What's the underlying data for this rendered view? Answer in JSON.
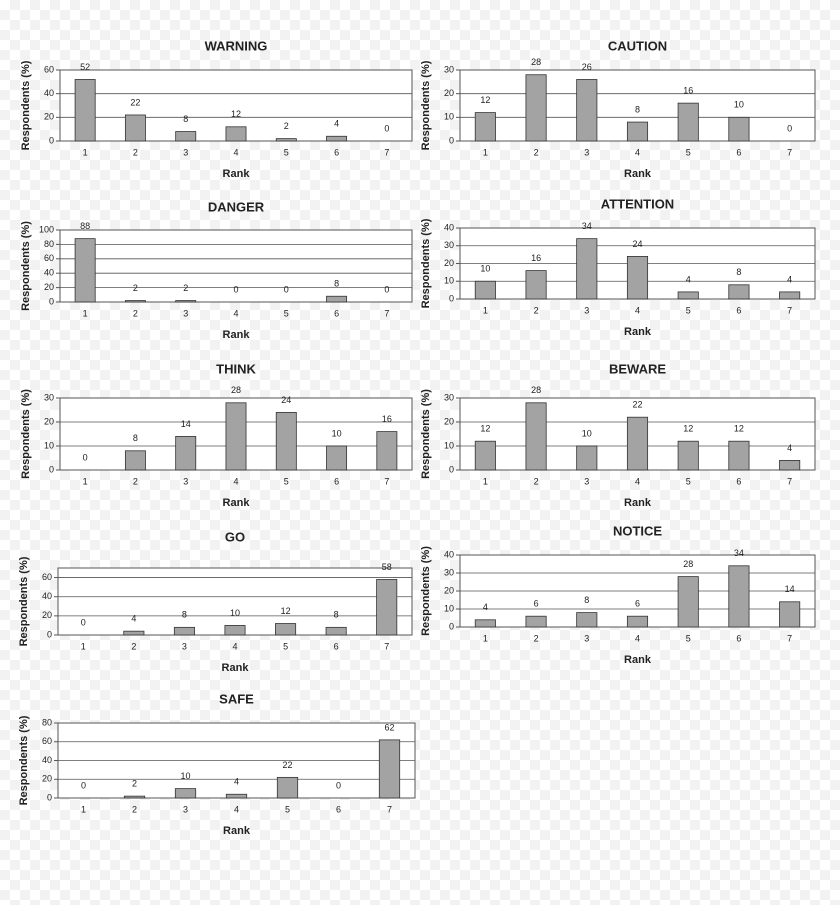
{
  "chart_data": [
    {
      "type": "bar",
      "title": "WARNING",
      "x_label": "Rank",
      "y_label": "Respondents (%)",
      "categories": [
        "1",
        "2",
        "3",
        "4",
        "5",
        "6",
        "7"
      ],
      "values": [
        52,
        22,
        8,
        12,
        2,
        4,
        0
      ],
      "ylim": [
        0,
        60
      ],
      "yticks": [
        0,
        20,
        40,
        60
      ],
      "grid": true,
      "color": "#a3a3a3"
    },
    {
      "type": "bar",
      "title": "CAUTION",
      "x_label": "Rank",
      "y_label": "Respondents (%)",
      "categories": [
        "1",
        "2",
        "3",
        "4",
        "5",
        "6",
        "7"
      ],
      "values": [
        12,
        28,
        26,
        8,
        16,
        10,
        0
      ],
      "ylim": [
        0,
        30
      ],
      "yticks": [
        0,
        10,
        20,
        30
      ],
      "grid": true,
      "color": "#a3a3a3"
    },
    {
      "type": "bar",
      "title": "DANGER",
      "x_label": "Rank",
      "y_label": "Respondents (%)",
      "categories": [
        "1",
        "2",
        "3",
        "4",
        "5",
        "6",
        "7"
      ],
      "values": [
        88,
        2,
        2,
        0,
        0,
        8,
        0
      ],
      "ylim": [
        0,
        100
      ],
      "yticks": [
        0,
        20,
        40,
        60,
        80,
        100
      ],
      "grid": true,
      "color": "#a3a3a3"
    },
    {
      "type": "bar",
      "title": "ATTENTION",
      "x_label": "Rank",
      "y_label": "Respondents (%)",
      "categories": [
        "1",
        "2",
        "3",
        "4",
        "5",
        "6",
        "7"
      ],
      "values": [
        10,
        16,
        34,
        24,
        4,
        8,
        4
      ],
      "ylim": [
        0,
        40
      ],
      "yticks": [
        0,
        10,
        20,
        30,
        40
      ],
      "grid": true,
      "color": "#a3a3a3"
    },
    {
      "type": "bar",
      "title": "THINK",
      "x_label": "Rank",
      "y_label": "Respondents (%)",
      "categories": [
        "1",
        "2",
        "3",
        "4",
        "5",
        "6",
        "7"
      ],
      "values": [
        0,
        8,
        14,
        28,
        24,
        10,
        16
      ],
      "ylim": [
        0,
        30
      ],
      "yticks": [
        0,
        10,
        20,
        30
      ],
      "grid": true,
      "color": "#a3a3a3"
    },
    {
      "type": "bar",
      "title": "BEWARE",
      "x_label": "Rank",
      "y_label": "Respondents (%)",
      "categories": [
        "1",
        "2",
        "3",
        "4",
        "5",
        "6",
        "7"
      ],
      "values": [
        12,
        28,
        10,
        22,
        12,
        12,
        4
      ],
      "ylim": [
        0,
        30
      ],
      "yticks": [
        0,
        10,
        20,
        30
      ],
      "grid": true,
      "color": "#a3a3a3"
    },
    {
      "type": "bar",
      "title": "GO",
      "x_label": "Rank",
      "y_label": "Respondents (%)",
      "categories": [
        "1",
        "2",
        "3",
        "4",
        "5",
        "6",
        "7"
      ],
      "values": [
        0,
        4,
        8,
        10,
        12,
        8,
        58
      ],
      "ylim": [
        0,
        70
      ],
      "yticks": [
        0,
        20,
        40,
        60
      ],
      "grid": true,
      "color": "#a3a3a3"
    },
    {
      "type": "bar",
      "title": "NOTICE",
      "x_label": "Rank",
      "y_label": "Respondents (%)",
      "categories": [
        "1",
        "2",
        "3",
        "4",
        "5",
        "6",
        "7"
      ],
      "values": [
        4,
        6,
        8,
        6,
        28,
        34,
        14
      ],
      "ylim": [
        0,
        40
      ],
      "yticks": [
        0,
        10,
        20,
        30,
        40
      ],
      "grid": true,
      "color": "#a3a3a3"
    },
    {
      "type": "bar",
      "title": "SAFE",
      "x_label": "Rank",
      "y_label": "Respondents (%)",
      "categories": [
        "1",
        "2",
        "3",
        "4",
        "5",
        "6",
        "7"
      ],
      "values": [
        0,
        2,
        10,
        4,
        22,
        0,
        62
      ],
      "ylim": [
        0,
        80
      ],
      "yticks": [
        0,
        20,
        40,
        60,
        80
      ],
      "grid": true,
      "color": "#a3a3a3"
    }
  ]
}
